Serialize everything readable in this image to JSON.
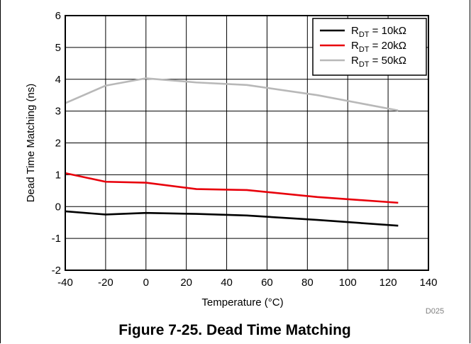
{
  "chart_data": {
    "type": "line",
    "title": "",
    "xlabel": "Temperature (°C)",
    "ylabel": "Dead Time Matching (ns)",
    "xlim": [
      -40,
      140
    ],
    "ylim": [
      -2,
      6
    ],
    "xticks": [
      -40,
      -20,
      0,
      20,
      40,
      60,
      80,
      100,
      120,
      140
    ],
    "yticks": [
      -2,
      -1,
      0,
      1,
      2,
      3,
      4,
      5,
      6
    ],
    "grid": true,
    "legend_position": "top-right",
    "series": [
      {
        "name_main": "R",
        "name_sub": "DT",
        "name_suffix": " = 10kΩ",
        "color": "#000000",
        "x": [
          -40,
          -20,
          0,
          25,
          50,
          85,
          125
        ],
        "y": [
          -0.15,
          -0.25,
          -0.2,
          -0.23,
          -0.28,
          -0.42,
          -0.6
        ]
      },
      {
        "name_main": "R",
        "name_sub": "DT",
        "name_suffix": " = 20kΩ",
        "color": "#e8000b",
        "x": [
          -40,
          -20,
          0,
          25,
          50,
          85,
          125
        ],
        "y": [
          1.05,
          0.78,
          0.75,
          0.55,
          0.52,
          0.3,
          0.12
        ]
      },
      {
        "name_main": "R",
        "name_sub": "DT",
        "name_suffix": " = 50kΩ",
        "color": "#b8b8b8",
        "x": [
          -40,
          -20,
          0,
          25,
          50,
          85,
          125
        ],
        "y": [
          3.25,
          3.8,
          4.03,
          3.9,
          3.82,
          3.5,
          3.02
        ]
      }
    ]
  },
  "figure_code": "D025",
  "caption": "Figure 7-25. Dead Time Matching"
}
